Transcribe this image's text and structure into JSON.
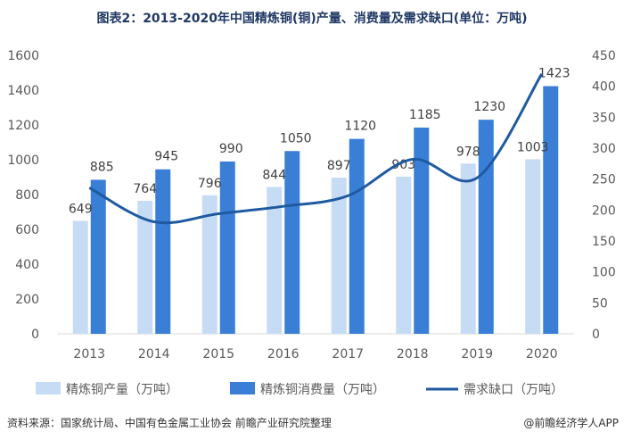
{
  "title": "图表2：2013-2020年中国精炼铜(铜)产量、消费量及需求缺口(单位：万吨)",
  "source": "资料来源：国家统计局、中国有色金属工业协会 前瞻产业研究院整理",
  "brand": "@前瞻经济学人APP",
  "colors": {
    "production": "#c6dcf5",
    "consumption": "#3a7fd6",
    "gap": "#1f5aa0"
  },
  "chart_data": {
    "type": "bar",
    "categories": [
      "2013",
      "2014",
      "2015",
      "2016",
      "2017",
      "2018",
      "2019",
      "2020"
    ],
    "series": [
      {
        "name": "精炼铜产量（万吨）",
        "type": "bar",
        "axis": "left",
        "values": [
          649,
          764,
          796,
          844,
          897,
          903,
          978,
          1003
        ]
      },
      {
        "name": "精炼铜消费量（万吨）",
        "type": "bar",
        "axis": "left",
        "values": [
          885,
          945,
          990,
          1050,
          1120,
          1185,
          1230,
          1423
        ]
      },
      {
        "name": "需求缺口（万吨）",
        "type": "line",
        "axis": "right",
        "values": [
          236,
          181,
          194,
          206,
          223,
          282,
          252,
          420
        ]
      }
    ],
    "y_left": {
      "min": 0,
      "max": 1600,
      "step": 200
    },
    "y_right": {
      "min": 0,
      "max": 450,
      "step": 50
    },
    "data_labels": {
      "production": [
        "649",
        "764",
        "796",
        "844",
        "897",
        "903",
        "978",
        "1003"
      ],
      "consumption": [
        "885",
        "945",
        "990",
        "1050",
        "1120",
        "1185",
        "1230",
        "1423"
      ]
    },
    "legend_position": "bottom",
    "grid": false
  }
}
